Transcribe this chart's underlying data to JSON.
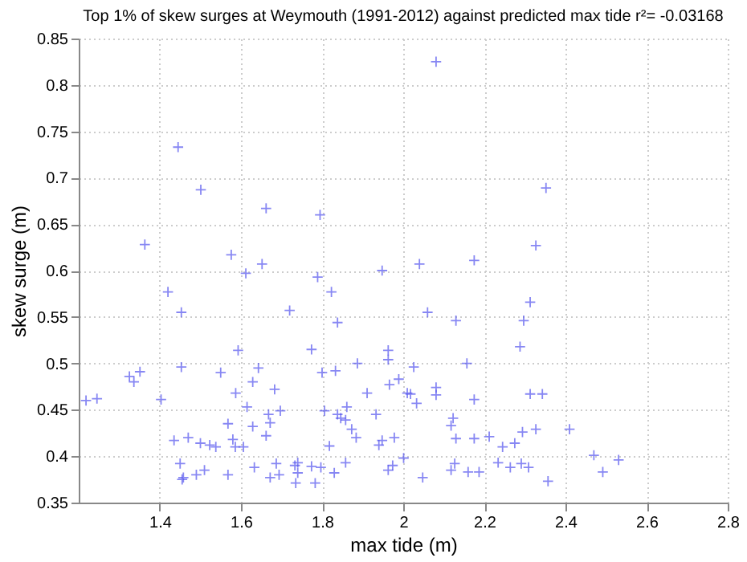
{
  "chart_data": {
    "type": "scatter",
    "title": "Top 1% of skew surges at Weymouth (1991-2012) against predicted max tide r²= -0.03168",
    "xlabel": "max tide (m)",
    "ylabel": "skew surge (m)",
    "x": [
      1.218,
      1.245,
      1.325,
      1.336,
      1.351,
      1.403,
      1.42,
      1.453,
      1.453,
      1.435,
      1.47,
      1.45,
      1.455,
      1.458,
      1.49,
      1.5,
      1.51,
      1.523,
      1.538,
      1.55,
      1.568,
      1.568,
      1.58,
      1.587,
      1.586,
      1.593,
      1.606,
      1.615,
      1.629,
      1.629,
      1.633,
      1.643,
      1.662,
      1.668,
      1.672,
      1.672,
      1.683,
      1.687,
      1.697,
      1.694,
      1.72,
      1.733,
      1.74,
      1.735,
      1.74,
      1.774,
      1.774,
      1.783,
      1.789,
      1.797,
      1.8,
      1.806,
      1.818,
      1.823,
      1.83,
      1.833,
      1.838,
      1.838,
      1.846,
      1.858,
      1.861,
      1.858,
      1.873,
      1.884,
      1.887,
      1.911,
      1.933,
      1.94,
      1.948,
      1.963,
      1.963,
      1.966,
      1.974,
      1.963,
      1.978,
      1.989,
      2.001,
      2.01,
      2.018,
      2.026,
      2.033,
      2.06,
      2.13,
      2.297,
      2.313,
      2.288,
      2.157,
      2.081,
      2.081,
      2.175,
      2.313,
      2.343,
      2.123,
      2.118,
      2.13,
      2.175,
      2.212,
      2.245,
      2.275,
      2.294,
      2.327,
      2.41,
      2.048,
      2.118,
      2.127,
      2.16,
      2.187,
      2.234,
      2.264,
      2.291,
      2.309,
      2.357,
      2.47,
      2.492,
      2.531,
      1.363,
      1.445,
      1.501,
      1.662,
      1.795,
      1.576,
      1.612,
      1.652,
      1.948,
      2.04,
      2.081,
      2.352,
      2.327,
      2.175
    ],
    "values": [
      0.46,
      0.462,
      0.486,
      0.48,
      0.491,
      0.461,
      0.577,
      0.555,
      0.496,
      0.417,
      0.42,
      0.392,
      0.375,
      0.377,
      0.38,
      0.414,
      0.385,
      0.412,
      0.41,
      0.49,
      0.435,
      0.38,
      0.418,
      0.468,
      0.41,
      0.514,
      0.41,
      0.453,
      0.48,
      0.432,
      0.388,
      0.495,
      0.422,
      0.445,
      0.436,
      0.377,
      0.472,
      0.392,
      0.449,
      0.38,
      0.557,
      0.39,
      0.393,
      0.371,
      0.382,
      0.515,
      0.389,
      0.371,
      0.593,
      0.388,
      0.49,
      0.449,
      0.411,
      0.577,
      0.382,
      0.492,
      0.544,
      0.445,
      0.441,
      0.439,
      0.453,
      0.393,
      0.429,
      0.42,
      0.5,
      0.468,
      0.445,
      0.412,
      0.417,
      0.514,
      0.504,
      0.477,
      0.39,
      0.385,
      0.42,
      0.483,
      0.398,
      0.468,
      0.467,
      0.496,
      0.457,
      0.555,
      0.546,
      0.546,
      0.566,
      0.518,
      0.5,
      0.474,
      0.466,
      0.461,
      0.467,
      0.467,
      0.441,
      0.433,
      0.419,
      0.419,
      0.421,
      0.41,
      0.414,
      0.426,
      0.429,
      0.429,
      0.377,
      0.385,
      0.392,
      0.383,
      0.383,
      0.393,
      0.388,
      0.392,
      0.388,
      0.373,
      0.401,
      0.383,
      0.396,
      0.628,
      0.733,
      0.687,
      0.667,
      0.66,
      0.617,
      0.597,
      0.607,
      0.6,
      0.607,
      0.825,
      0.689,
      0.627,
      0.611
    ],
    "color": "#5555ee",
    "marker": "cross",
    "xlim": [
      1.2,
      2.8
    ],
    "xticks": [
      1.4,
      1.6,
      1.8,
      2,
      2.2,
      2.4,
      2.6,
      2.8
    ],
    "ylim": [
      0.35,
      0.85
    ],
    "yticks": [
      0.35,
      0.4,
      0.45,
      0.5,
      0.55,
      0.6,
      0.65,
      0.7,
      0.75,
      0.8,
      0.85
    ],
    "grid": true
  }
}
